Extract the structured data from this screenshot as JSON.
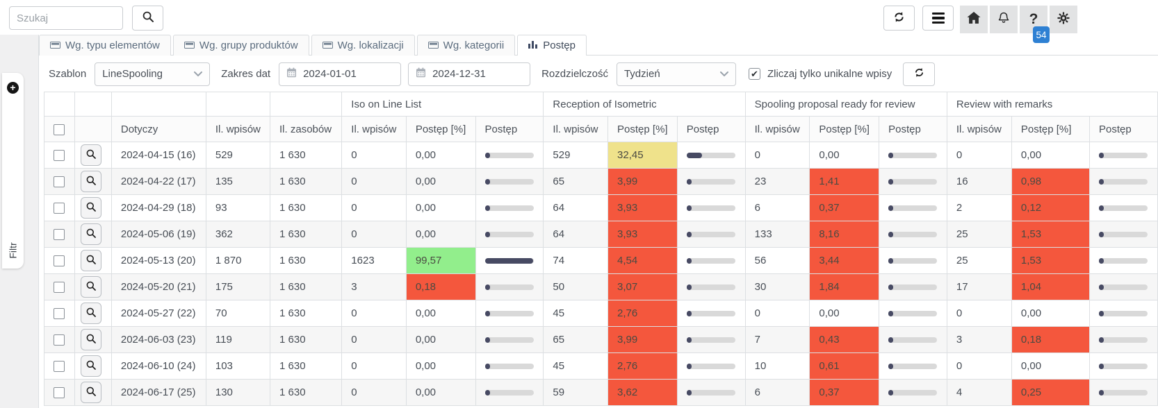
{
  "topbar": {
    "search_placeholder": "Szukaj",
    "notification_badge": "54"
  },
  "sidebar": {
    "filter_tab_label": "Filtr"
  },
  "tabs": [
    {
      "label": "Wg. typu elementów",
      "icon": "card-icon",
      "active": false
    },
    {
      "label": "Wg. grupy produktów",
      "icon": "card-icon",
      "active": false
    },
    {
      "label": "Wg. lokalizacji",
      "icon": "card-icon",
      "active": false
    },
    {
      "label": "Wg. kategorii",
      "icon": "card-icon",
      "active": false
    },
    {
      "label": "Postęp",
      "icon": "bar-chart-icon",
      "active": true
    }
  ],
  "filters": {
    "template_label": "Szablon",
    "template_value": "LineSpooling",
    "date_range_label": "Zakres dat",
    "date_from": "2024-01-01",
    "date_to": "2024-12-31",
    "resolution_label": "Rozdzielczość",
    "resolution_value": "Tydzień",
    "unique_label": "Zliczaj tylko unikalne wpisy",
    "unique_checked": true
  },
  "table": {
    "base_columns": [
      "Dotyczy",
      "Il. wpisów",
      "Il. zasobów"
    ],
    "stage_groups": [
      "Iso on Line List",
      "Reception of Isometric",
      "Spooling proposal ready for review",
      "Review with remarks"
    ],
    "stage_columns": [
      "Il. wpisów",
      "Postęp [%]",
      "Postęp"
    ],
    "rows": [
      {
        "dotyczy": "2024-04-15 (16)",
        "il_wpisow": "529",
        "il_zasobow": "1 630",
        "stages": [
          {
            "wpisy": "0",
            "pct": "0,00",
            "pct_value": 0,
            "highlight": "none"
          },
          {
            "wpisy": "529",
            "pct": "32,45",
            "pct_value": 32.45,
            "highlight": "yellow"
          },
          {
            "wpisy": "0",
            "pct": "0,00",
            "pct_value": 0,
            "highlight": "none"
          },
          {
            "wpisy": "0",
            "pct": "0,00",
            "pct_value": 0,
            "highlight": "none"
          }
        ]
      },
      {
        "dotyczy": "2024-04-22 (17)",
        "il_wpisow": "135",
        "il_zasobow": "1 630",
        "stages": [
          {
            "wpisy": "0",
            "pct": "0,00",
            "pct_value": 0,
            "highlight": "none"
          },
          {
            "wpisy": "65",
            "pct": "3,99",
            "pct_value": 3.99,
            "highlight": "red"
          },
          {
            "wpisy": "23",
            "pct": "1,41",
            "pct_value": 1.41,
            "highlight": "red"
          },
          {
            "wpisy": "16",
            "pct": "0,98",
            "pct_value": 0.98,
            "highlight": "red"
          }
        ]
      },
      {
        "dotyczy": "2024-04-29 (18)",
        "il_wpisow": "93",
        "il_zasobow": "1 630",
        "stages": [
          {
            "wpisy": "0",
            "pct": "0,00",
            "pct_value": 0,
            "highlight": "none"
          },
          {
            "wpisy": "64",
            "pct": "3,93",
            "pct_value": 3.93,
            "highlight": "red"
          },
          {
            "wpisy": "6",
            "pct": "0,37",
            "pct_value": 0.37,
            "highlight": "red"
          },
          {
            "wpisy": "2",
            "pct": "0,12",
            "pct_value": 0.12,
            "highlight": "red"
          }
        ]
      },
      {
        "dotyczy": "2024-05-06 (19)",
        "il_wpisow": "362",
        "il_zasobow": "1 630",
        "stages": [
          {
            "wpisy": "0",
            "pct": "0,00",
            "pct_value": 0,
            "highlight": "none"
          },
          {
            "wpisy": "64",
            "pct": "3,93",
            "pct_value": 3.93,
            "highlight": "red"
          },
          {
            "wpisy": "133",
            "pct": "8,16",
            "pct_value": 8.16,
            "highlight": "red"
          },
          {
            "wpisy": "25",
            "pct": "1,53",
            "pct_value": 1.53,
            "highlight": "red"
          }
        ]
      },
      {
        "dotyczy": "2024-05-13 (20)",
        "il_wpisow": "1 870",
        "il_zasobow": "1 630",
        "stages": [
          {
            "wpisy": "1623",
            "pct": "99,57",
            "pct_value": 99.57,
            "highlight": "green"
          },
          {
            "wpisy": "74",
            "pct": "4,54",
            "pct_value": 4.54,
            "highlight": "red"
          },
          {
            "wpisy": "56",
            "pct": "3,44",
            "pct_value": 3.44,
            "highlight": "red"
          },
          {
            "wpisy": "25",
            "pct": "1,53",
            "pct_value": 1.53,
            "highlight": "red"
          }
        ]
      },
      {
        "dotyczy": "2024-05-20 (21)",
        "il_wpisow": "175",
        "il_zasobow": "1 630",
        "stages": [
          {
            "wpisy": "3",
            "pct": "0,18",
            "pct_value": 0.18,
            "highlight": "red"
          },
          {
            "wpisy": "50",
            "pct": "3,07",
            "pct_value": 3.07,
            "highlight": "red"
          },
          {
            "wpisy": "30",
            "pct": "1,84",
            "pct_value": 1.84,
            "highlight": "red"
          },
          {
            "wpisy": "17",
            "pct": "1,04",
            "pct_value": 1.04,
            "highlight": "red"
          }
        ]
      },
      {
        "dotyczy": "2024-05-27 (22)",
        "il_wpisow": "70",
        "il_zasobow": "1 630",
        "stages": [
          {
            "wpisy": "0",
            "pct": "0,00",
            "pct_value": 0,
            "highlight": "none"
          },
          {
            "wpisy": "45",
            "pct": "2,76",
            "pct_value": 2.76,
            "highlight": "red"
          },
          {
            "wpisy": "0",
            "pct": "0,00",
            "pct_value": 0,
            "highlight": "none"
          },
          {
            "wpisy": "0",
            "pct": "0,00",
            "pct_value": 0,
            "highlight": "none"
          }
        ]
      },
      {
        "dotyczy": "2024-06-03 (23)",
        "il_wpisow": "119",
        "il_zasobow": "1 630",
        "stages": [
          {
            "wpisy": "0",
            "pct": "0,00",
            "pct_value": 0,
            "highlight": "none"
          },
          {
            "wpisy": "65",
            "pct": "3,99",
            "pct_value": 3.99,
            "highlight": "red"
          },
          {
            "wpisy": "7",
            "pct": "0,43",
            "pct_value": 0.43,
            "highlight": "red"
          },
          {
            "wpisy": "3",
            "pct": "0,18",
            "pct_value": 0.18,
            "highlight": "red"
          }
        ]
      },
      {
        "dotyczy": "2024-06-10 (24)",
        "il_wpisow": "103",
        "il_zasobow": "1 630",
        "stages": [
          {
            "wpisy": "0",
            "pct": "0,00",
            "pct_value": 0,
            "highlight": "none"
          },
          {
            "wpisy": "45",
            "pct": "2,76",
            "pct_value": 2.76,
            "highlight": "red"
          },
          {
            "wpisy": "10",
            "pct": "0,61",
            "pct_value": 0.61,
            "highlight": "red"
          },
          {
            "wpisy": "0",
            "pct": "0,00",
            "pct_value": 0,
            "highlight": "none"
          }
        ]
      },
      {
        "dotyczy": "2024-06-17 (25)",
        "il_wpisow": "130",
        "il_zasobow": "1 630",
        "stages": [
          {
            "wpisy": "0",
            "pct": "0,00",
            "pct_value": 0,
            "highlight": "none"
          },
          {
            "wpisy": "59",
            "pct": "3,62",
            "pct_value": 3.62,
            "highlight": "red"
          },
          {
            "wpisy": "6",
            "pct": "0,37",
            "pct_value": 0.37,
            "highlight": "red"
          },
          {
            "wpisy": "4",
            "pct": "0,25",
            "pct_value": 0.25,
            "highlight": "red"
          }
        ]
      }
    ]
  },
  "colors": {
    "highlight_red": "#f4573d",
    "highlight_yellow": "#efe28b",
    "highlight_green": "#92ee8c",
    "bar_fill": "#474a63",
    "bar_track": "#d9d9d9",
    "badge_blue": "#2e80d3"
  }
}
